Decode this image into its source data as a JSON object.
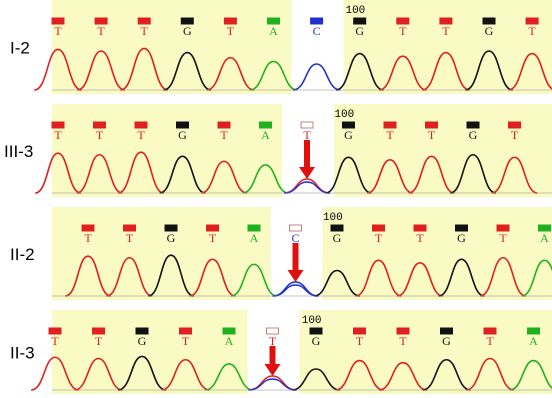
{
  "panels": [
    {
      "label": "I-2",
      "position": "100",
      "bases": [
        "T",
        "T",
        "T",
        "G",
        "T",
        "A",
        "C",
        "G",
        "T",
        "T",
        "G",
        "T"
      ]
    },
    {
      "label": "III-3",
      "position": "100",
      "bases": [
        "T",
        "T",
        "T",
        "G",
        "T",
        "A",
        "T",
        "G",
        "T",
        "T",
        "G",
        "T"
      ]
    },
    {
      "label": "II-2",
      "position": "100",
      "bases": [
        "T",
        "T",
        "G",
        "T",
        "A",
        "C",
        "G",
        "T",
        "T",
        "G",
        "T",
        "A"
      ]
    },
    {
      "label": "II-3",
      "position": "100",
      "bases": [
        "T",
        "T",
        "G",
        "T",
        "A",
        "T",
        "G",
        "T",
        "T",
        "G",
        "T",
        "A"
      ]
    }
  ]
}
